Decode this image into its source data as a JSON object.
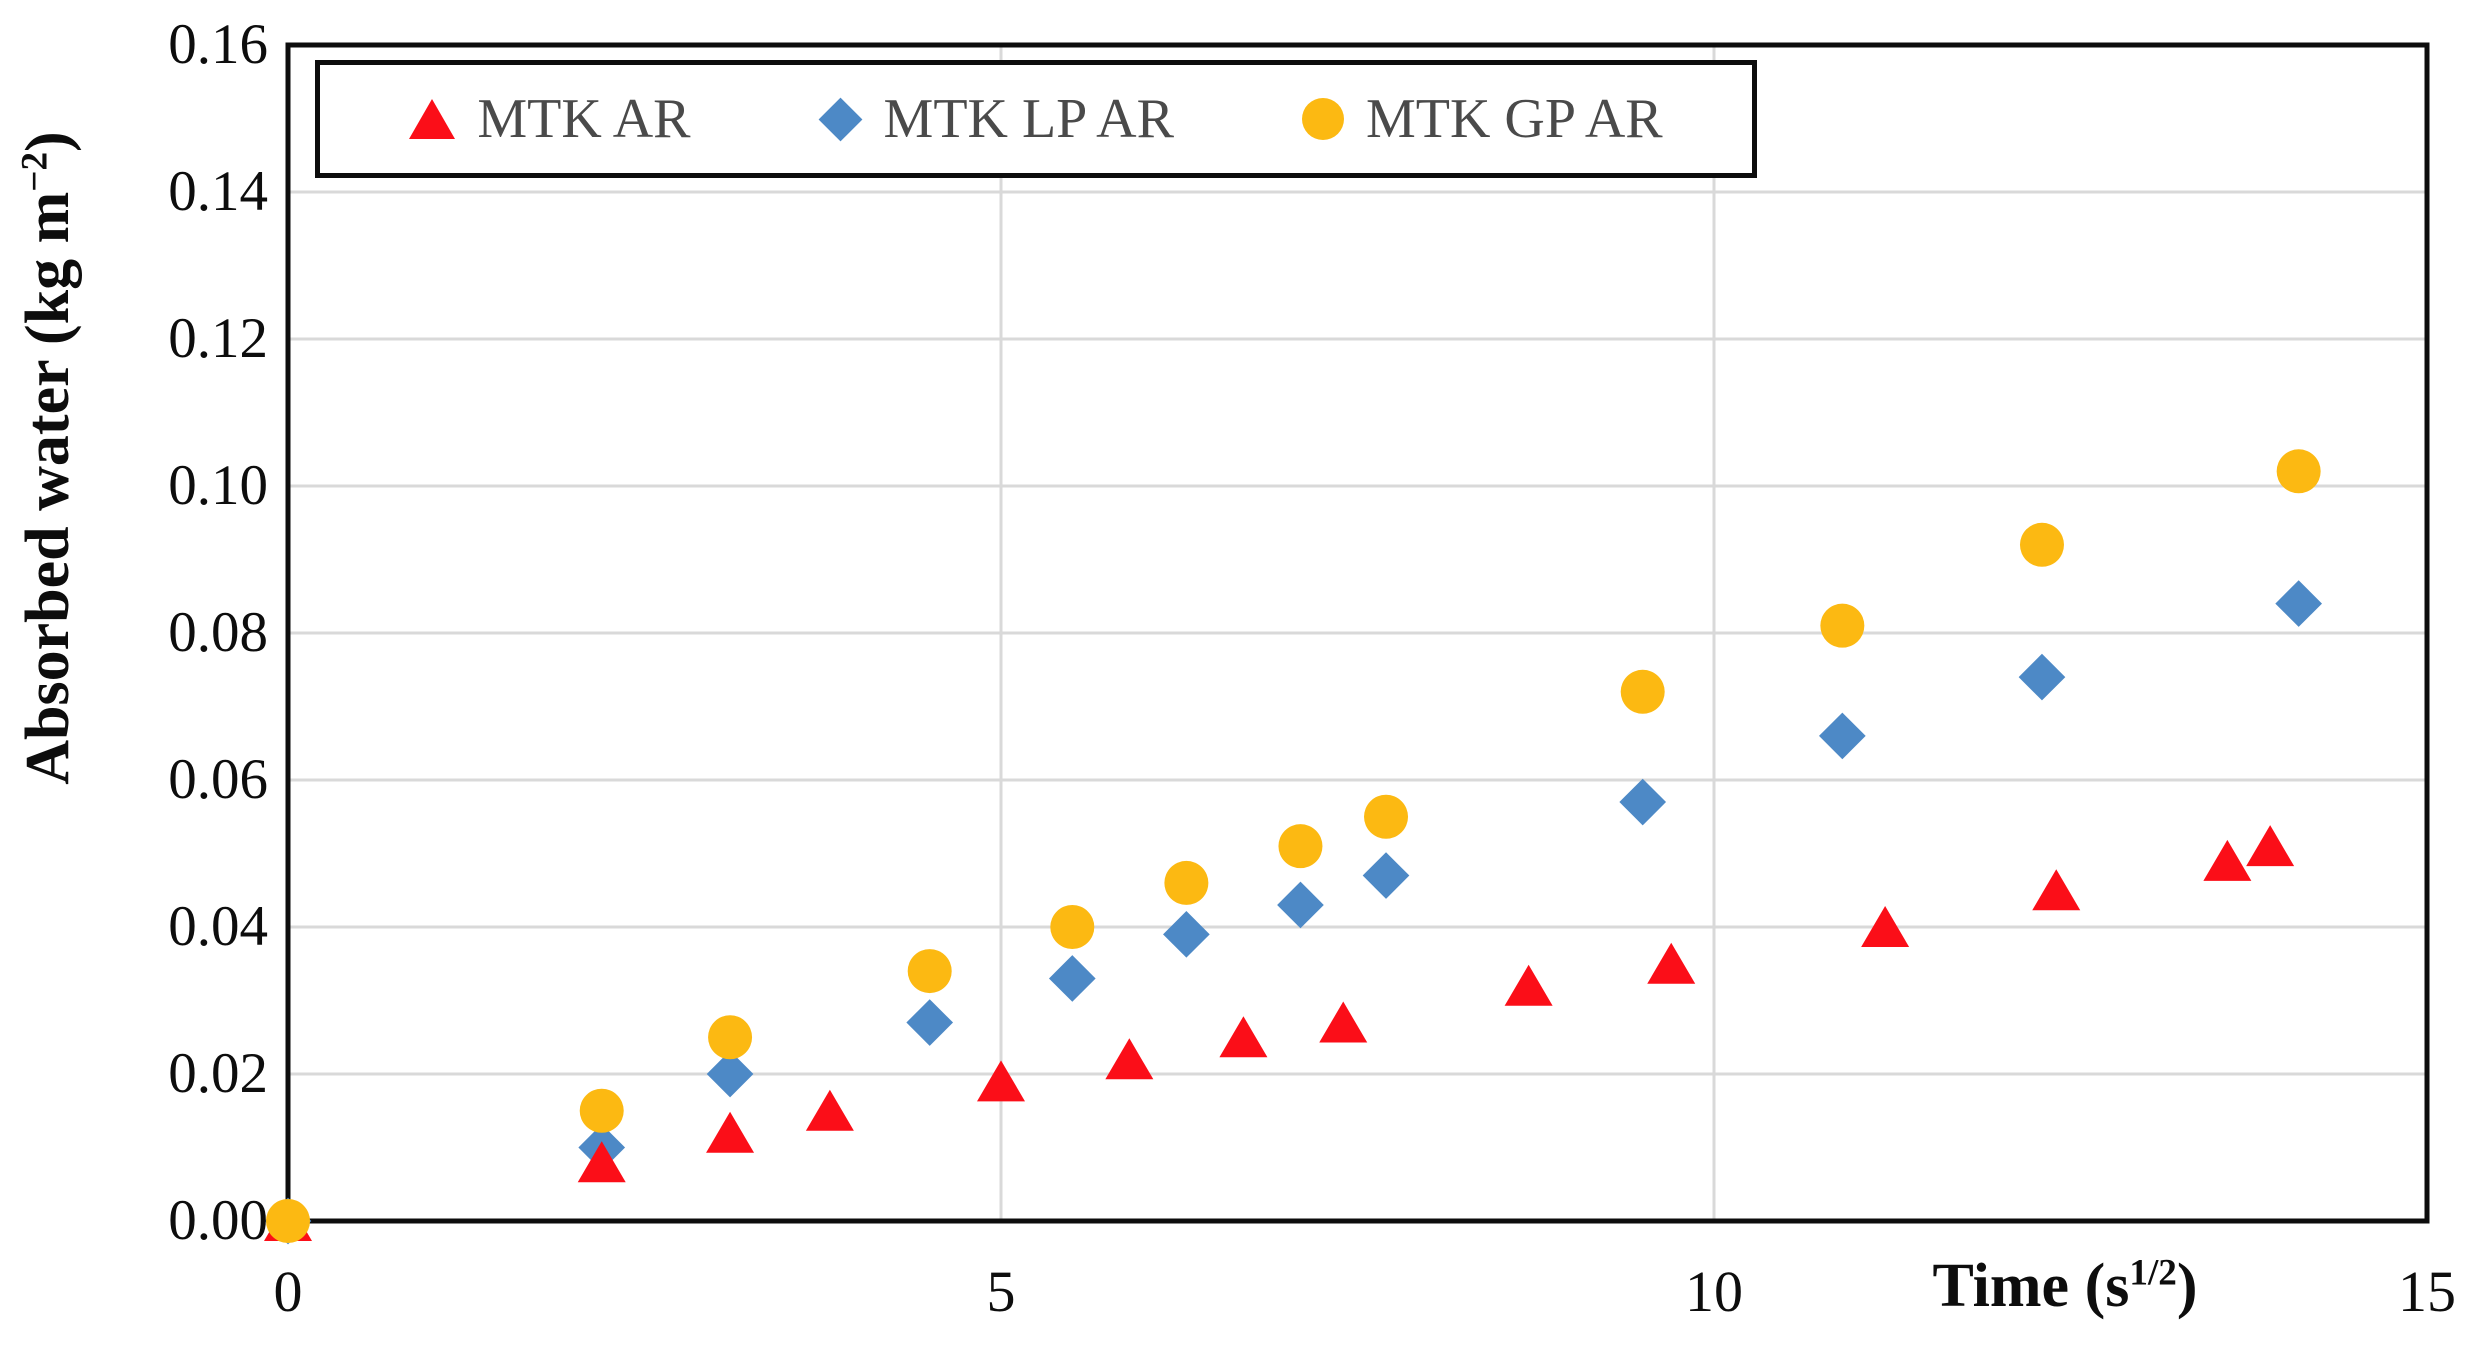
{
  "chart_data": {
    "type": "scatter",
    "title": "",
    "xlabel_parts": {
      "main": "Time (s",
      "sup": "1/2",
      "end": ")"
    },
    "ylabel_parts": {
      "main": "Absorbed water (kg m",
      "sup": "−2",
      "end": ")"
    },
    "xlim": [
      0,
      15
    ],
    "ylim": [
      0,
      0.16
    ],
    "x_ticks": [
      {
        "value": 0,
        "label": "0"
      },
      {
        "value": 5,
        "label": "5"
      },
      {
        "value": 10,
        "label": "10"
      },
      {
        "value": 15,
        "label": "15"
      }
    ],
    "y_ticks": [
      {
        "value": 0.0,
        "label": "0.00"
      },
      {
        "value": 0.02,
        "label": "0.02"
      },
      {
        "value": 0.04,
        "label": "0.04"
      },
      {
        "value": 0.06,
        "label": "0.06"
      },
      {
        "value": 0.08,
        "label": "0.08"
      },
      {
        "value": 0.1,
        "label": "0.10"
      },
      {
        "value": 0.12,
        "label": "0.12"
      },
      {
        "value": 0.14,
        "label": "0.14"
      },
      {
        "value": 0.16,
        "label": "0.16"
      }
    ],
    "grid": {
      "color": "#d9d9d9",
      "vertical_at": [
        5,
        10
      ]
    },
    "border_color": "#0d0d0d",
    "legend_position": "top-left-inside",
    "legend_text_color": "#4a4a4a",
    "series": [
      {
        "name": "MTK AR",
        "marker": "triangle",
        "color": "#fb0e18",
        "points": [
          [
            0,
            0.0
          ],
          [
            2.2,
            0.008
          ],
          [
            3.1,
            0.012
          ],
          [
            3.8,
            0.015
          ],
          [
            5.0,
            0.019
          ],
          [
            5.9,
            0.022
          ],
          [
            6.7,
            0.025
          ],
          [
            7.4,
            0.027
          ],
          [
            8.7,
            0.032
          ],
          [
            9.7,
            0.035
          ],
          [
            11.2,
            0.04
          ],
          [
            12.4,
            0.045
          ],
          [
            13.6,
            0.049
          ],
          [
            13.9,
            0.051
          ]
        ]
      },
      {
        "name": "MTK LP AR",
        "marker": "diamond",
        "color": "#4d89c6",
        "points": [
          [
            0,
            0.0
          ],
          [
            2.2,
            0.01
          ],
          [
            3.1,
            0.02
          ],
          [
            4.5,
            0.027
          ],
          [
            5.5,
            0.033
          ],
          [
            6.3,
            0.039
          ],
          [
            7.1,
            0.043
          ],
          [
            7.7,
            0.047
          ],
          [
            9.5,
            0.057
          ],
          [
            10.9,
            0.066
          ],
          [
            12.3,
            0.074
          ],
          [
            14.1,
            0.084
          ]
        ]
      },
      {
        "name": "MTK GP AR",
        "marker": "circle",
        "color": "#fcb912",
        "points": [
          [
            0,
            0.0
          ],
          [
            2.2,
            0.015
          ],
          [
            3.1,
            0.025
          ],
          [
            4.5,
            0.034
          ],
          [
            5.5,
            0.04
          ],
          [
            6.3,
            0.046
          ],
          [
            7.1,
            0.051
          ],
          [
            7.7,
            0.055
          ],
          [
            9.5,
            0.072
          ],
          [
            10.9,
            0.081
          ],
          [
            12.3,
            0.092
          ],
          [
            14.1,
            0.102
          ]
        ]
      }
    ]
  }
}
